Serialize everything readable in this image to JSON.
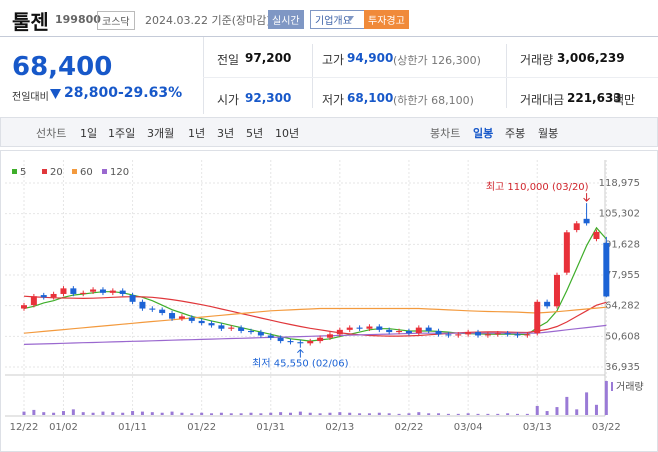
{
  "header": {
    "name": "툴젠",
    "code": "199800",
    "market": "코스닥",
    "date": "2024.03.22 기준(장마감)",
    "buttons": [
      "실시간",
      "기업개요",
      "투자경고"
    ]
  },
  "quote": {
    "price": "68,400",
    "change_label": "전일대비",
    "change": "28,800",
    "rate": "-29.63%",
    "stats": [
      [
        {
          "label": "전일",
          "value": "97,200"
        },
        {
          "label": "고가",
          "value": "94,900",
          "note": "(상한가 126,300)"
        },
        {
          "label": "거래량",
          "value": "3,006,239"
        }
      ],
      [
        {
          "label": "시가",
          "value": "92,300"
        },
        {
          "label": "저가",
          "value": "68,100",
          "note": "(하한가 68,100)"
        },
        {
          "label": "거래대금",
          "value": "221,633",
          "unit": "백만"
        }
      ]
    ]
  },
  "tabs": {
    "line_label": "선차트",
    "line_periods": [
      "1일",
      "1주일",
      "3개월",
      "1년",
      "3년",
      "5년",
      "10년"
    ],
    "candle_label": "봉차트",
    "candle_periods": [
      "일봉",
      "주봉",
      "월봉"
    ]
  },
  "chart_data": {
    "type": "candlestick",
    "categories": [
      "12/22",
      null,
      null,
      null,
      "01/02",
      null,
      null,
      null,
      null,
      null,
      null,
      "01/11",
      null,
      null,
      null,
      null,
      null,
      null,
      "01/22",
      null,
      null,
      null,
      null,
      null,
      null,
      "01/31",
      null,
      null,
      null,
      null,
      null,
      null,
      "02/13",
      null,
      null,
      null,
      null,
      null,
      null,
      "02/22",
      null,
      null,
      null,
      null,
      null,
      "03/04",
      null,
      null,
      null,
      null,
      null,
      null,
      "03/13",
      null,
      null,
      null,
      null,
      null,
      null,
      "03/22"
    ],
    "open": [
      63000,
      64500,
      69000,
      68000,
      69500,
      72000,
      69500,
      70500,
      71500,
      70000,
      71000,
      69000,
      66000,
      63000,
      62500,
      61000,
      58500,
      59000,
      57500,
      56500,
      55500,
      54000,
      54500,
      53000,
      52500,
      51000,
      50000,
      48500,
      48000,
      47500,
      48500,
      50000,
      51500,
      53500,
      54500,
      54000,
      55000,
      53500,
      52500,
      53000,
      52000,
      54500,
      53000,
      51500,
      51000,
      51500,
      52500,
      51000,
      51500,
      52000,
      51500,
      51000,
      52000,
      66000,
      64000,
      79000,
      98000,
      103000,
      94000,
      92300
    ],
    "high": [
      65500,
      69500,
      70000,
      70500,
      73000,
      73000,
      71000,
      72500,
      72500,
      72000,
      72000,
      70000,
      67000,
      64000,
      63500,
      62000,
      60500,
      60000,
      58500,
      57500,
      56500,
      55500,
      55500,
      54000,
      53500,
      52000,
      51000,
      49500,
      49000,
      49500,
      51000,
      52500,
      54500,
      55500,
      55500,
      56000,
      56000,
      54500,
      54000,
      54000,
      55500,
      55500,
      54000,
      52500,
      52500,
      53500,
      53500,
      52500,
      53000,
      53000,
      52500,
      52500,
      67000,
      67000,
      79000,
      98000,
      102000,
      110000,
      98200,
      94900
    ],
    "low": [
      62000,
      63500,
      67000,
      67000,
      68500,
      68500,
      68500,
      69500,
      69000,
      69000,
      68500,
      65000,
      62000,
      61500,
      60000,
      57500,
      57500,
      56500,
      55500,
      54500,
      53000,
      53000,
      52000,
      51500,
      50000,
      49000,
      47500,
      47000,
      45550,
      46500,
      47500,
      49000,
      50500,
      52500,
      53000,
      53000,
      52500,
      51500,
      51500,
      51000,
      51000,
      52000,
      50500,
      50000,
      50000,
      50500,
      50000,
      50000,
      50500,
      50500,
      50000,
      50000,
      51000,
      63000,
      63000,
      78000,
      97000,
      100000,
      93000,
      68100
    ],
    "close": [
      64500,
      68500,
      68000,
      69500,
      72000,
      69500,
      70000,
      71500,
      70000,
      71000,
      69500,
      66000,
      63000,
      62500,
      61000,
      58500,
      59500,
      57500,
      56500,
      55500,
      54000,
      54500,
      53000,
      52500,
      51000,
      50000,
      48500,
      48000,
      47500,
      48500,
      50000,
      51500,
      53500,
      54500,
      54000,
      55000,
      53500,
      52500,
      53000,
      52000,
      54500,
      53000,
      51500,
      51000,
      51500,
      52500,
      51000,
      51500,
      52000,
      51500,
      51000,
      51500,
      66000,
      64000,
      78000,
      97000,
      101000,
      101000,
      97200,
      68400
    ],
    "up_color": "#e8313a",
    "down_color": "#1c63d5",
    "ylim": [
      36935,
      118975
    ],
    "yticks": [
      {
        "value": 36935,
        "label": "36,935"
      },
      {
        "value": 50608,
        "label": "50,608"
      },
      {
        "value": 64282,
        "label": "64,282"
      },
      {
        "value": 77955,
        "label": "77,955"
      },
      {
        "value": 91628,
        "label": "91,628"
      },
      {
        "value": 105302,
        "label": "105,302"
      },
      {
        "value": 118975,
        "label": "118,975"
      }
    ],
    "grid": true,
    "series": [
      {
        "name": "5",
        "color": "#3fae2a",
        "values": [
          63000,
          64000,
          65500,
          66500,
          68000,
          69000,
          69500,
          70000,
          70500,
          70500,
          70000,
          69000,
          68000,
          66500,
          64500,
          62500,
          61000,
          59500,
          58500,
          57500,
          56500,
          55500,
          54500,
          53500,
          52500,
          51500,
          50500,
          49500,
          49000,
          48500,
          49000,
          49500,
          50500,
          51500,
          52500,
          53500,
          54000,
          54000,
          53500,
          53000,
          53000,
          53000,
          52800,
          52500,
          52000,
          51800,
          51700,
          51600,
          51500,
          51600,
          51500,
          51400,
          54500,
          57000,
          62000,
          71000,
          81000,
          91000,
          99000,
          94000
        ]
      },
      {
        "name": "20",
        "color": "#e0373b",
        "values": [
          68500,
          68200,
          68000,
          67800,
          67700,
          67600,
          67500,
          67600,
          67800,
          68000,
          68200,
          68300,
          68200,
          68000,
          67500,
          67000,
          66300,
          65500,
          64700,
          63800,
          62800,
          61800,
          60800,
          59800,
          58800,
          57800,
          56800,
          55900,
          55000,
          54200,
          53500,
          52800,
          52200,
          51700,
          51300,
          51000,
          50800,
          50700,
          50700,
          50800,
          51000,
          51300,
          51600,
          51900,
          52200,
          52400,
          52500,
          52600,
          52600,
          52500,
          52400,
          52300,
          53000,
          53700,
          55000,
          57000,
          59500,
          62000,
          64500,
          65800
        ]
      },
      {
        "name": "60",
        "color": "#f39a3e",
        "values": [
          52000,
          52400,
          52800,
          53200,
          53600,
          54000,
          54400,
          54800,
          55200,
          55600,
          56000,
          56400,
          56800,
          57200,
          57600,
          58000,
          58400,
          58800,
          59200,
          59600,
          60000,
          60400,
          60800,
          61200,
          61600,
          62000,
          62200,
          62400,
          62600,
          62800,
          63000,
          63000,
          63000,
          63000,
          63000,
          63000,
          63000,
          63000,
          63000,
          63000,
          63000,
          62800,
          62600,
          62400,
          62200,
          62000,
          61800,
          61700,
          61600,
          61500,
          61400,
          61200,
          61000,
          61300,
          61600,
          62000,
          62400,
          62800,
          63200,
          63600
        ]
      },
      {
        "name": "120",
        "color": "#9a68cf",
        "values": [
          47000,
          47125,
          47250,
          47375,
          47500,
          47625,
          47750,
          47875,
          48000,
          48125,
          48250,
          48375,
          48500,
          48625,
          48750,
          48875,
          49000,
          49125,
          49250,
          49375,
          49500,
          49625,
          49750,
          49875,
          50000,
          50125,
          50250,
          50375,
          50500,
          50625,
          50750,
          50875,
          51000,
          51125,
          51250,
          51375,
          51500,
          51625,
          51750,
          51875,
          52000,
          52000,
          52000,
          52000,
          52000,
          52000,
          52000,
          52000,
          52000,
          52000,
          52000,
          52000,
          52000,
          52500,
          53000,
          53500,
          54000,
          54500,
          55000,
          55500
        ]
      }
    ],
    "volume": {
      "name": "거래량",
      "color": "#9a7ad6",
      "values": [
        300000,
        450000,
        250000,
        200000,
        350000,
        500000,
        250000,
        200000,
        300000,
        250000,
        200000,
        350000,
        300000,
        250000,
        200000,
        300000,
        200000,
        150000,
        200000,
        150000,
        200000,
        150000,
        150000,
        200000,
        150000,
        200000,
        250000,
        200000,
        300000,
        200000,
        150000,
        200000,
        250000,
        200000,
        150000,
        150000,
        200000,
        150000,
        100000,
        150000,
        250000,
        150000,
        150000,
        100000,
        100000,
        150000,
        100000,
        100000,
        100000,
        150000,
        100000,
        100000,
        800000,
        350000,
        700000,
        1600000,
        500000,
        2000000,
        900000,
        3006239
      ]
    },
    "annotations": [
      "최고 110,000 (03/20)",
      "최저 45,550 (02/06)"
    ]
  }
}
